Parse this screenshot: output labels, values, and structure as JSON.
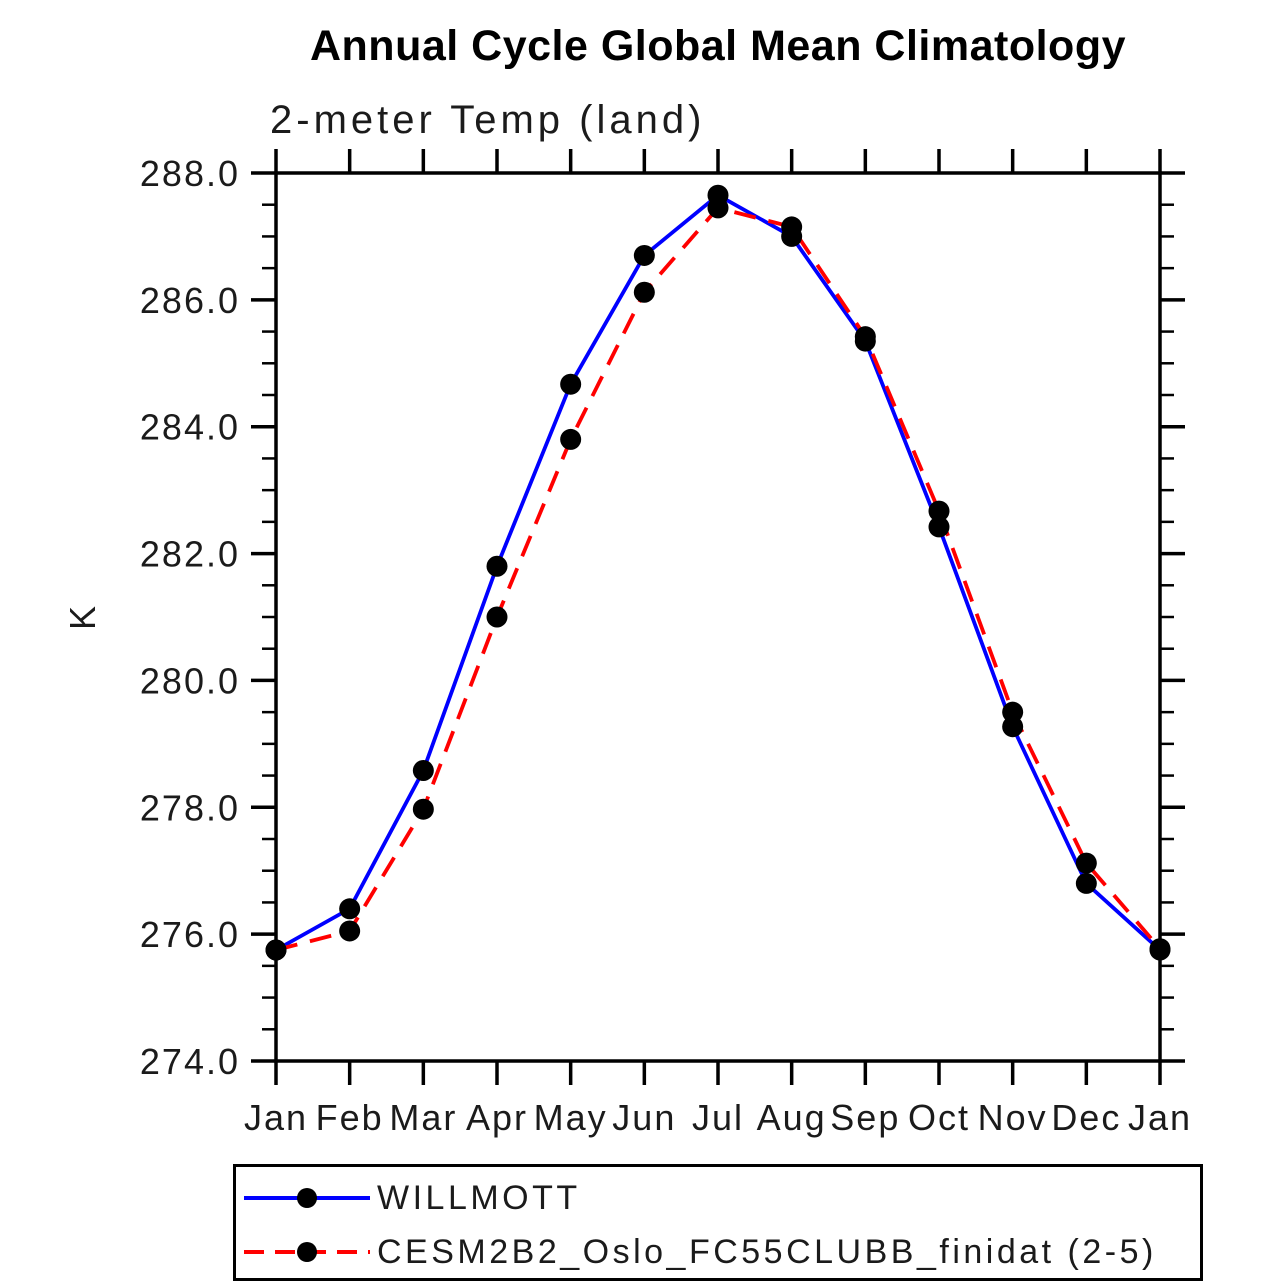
{
  "chart_data": {
    "type": "line",
    "title": "Annual Cycle Global Mean Climatology",
    "subtitle": "2-meter Temp (land)",
    "ylabel": "K",
    "xlabel": "",
    "x_categories": [
      "Jan",
      "Feb",
      "Mar",
      "Apr",
      "May",
      "Jun",
      "Jul",
      "Aug",
      "Sep",
      "Oct",
      "Nov",
      "Dec",
      "Jan"
    ],
    "ylim": [
      274.0,
      288.0
    ],
    "ytick_major_interval": 2.0,
    "ytick_minor_interval": 0.5,
    "ytick_labels": [
      "274.0",
      "276.0",
      "278.0",
      "280.0",
      "282.0",
      "284.0",
      "286.0",
      "288.0"
    ],
    "grid": false,
    "legend_position": "bottom",
    "marker": {
      "shape": "circle",
      "color": "#000000"
    },
    "axis_color": "#000000",
    "series": [
      {
        "name": "WILLMOTT",
        "color": "#0000ff",
        "line_style": "solid",
        "values": [
          275.75,
          276.4,
          278.58,
          281.8,
          284.67,
          286.7,
          287.65,
          287.0,
          285.35,
          282.42,
          279.27,
          276.8,
          275.75
        ]
      },
      {
        "name": "CESM2B2_Oslo_FC55CLUBB_finidat (2-5)",
        "color": "#ff0000",
        "line_style": "dashed",
        "values": [
          275.75,
          276.05,
          277.97,
          281.0,
          283.8,
          286.12,
          287.45,
          287.15,
          285.42,
          282.67,
          279.5,
          277.12,
          275.77
        ]
      }
    ]
  }
}
